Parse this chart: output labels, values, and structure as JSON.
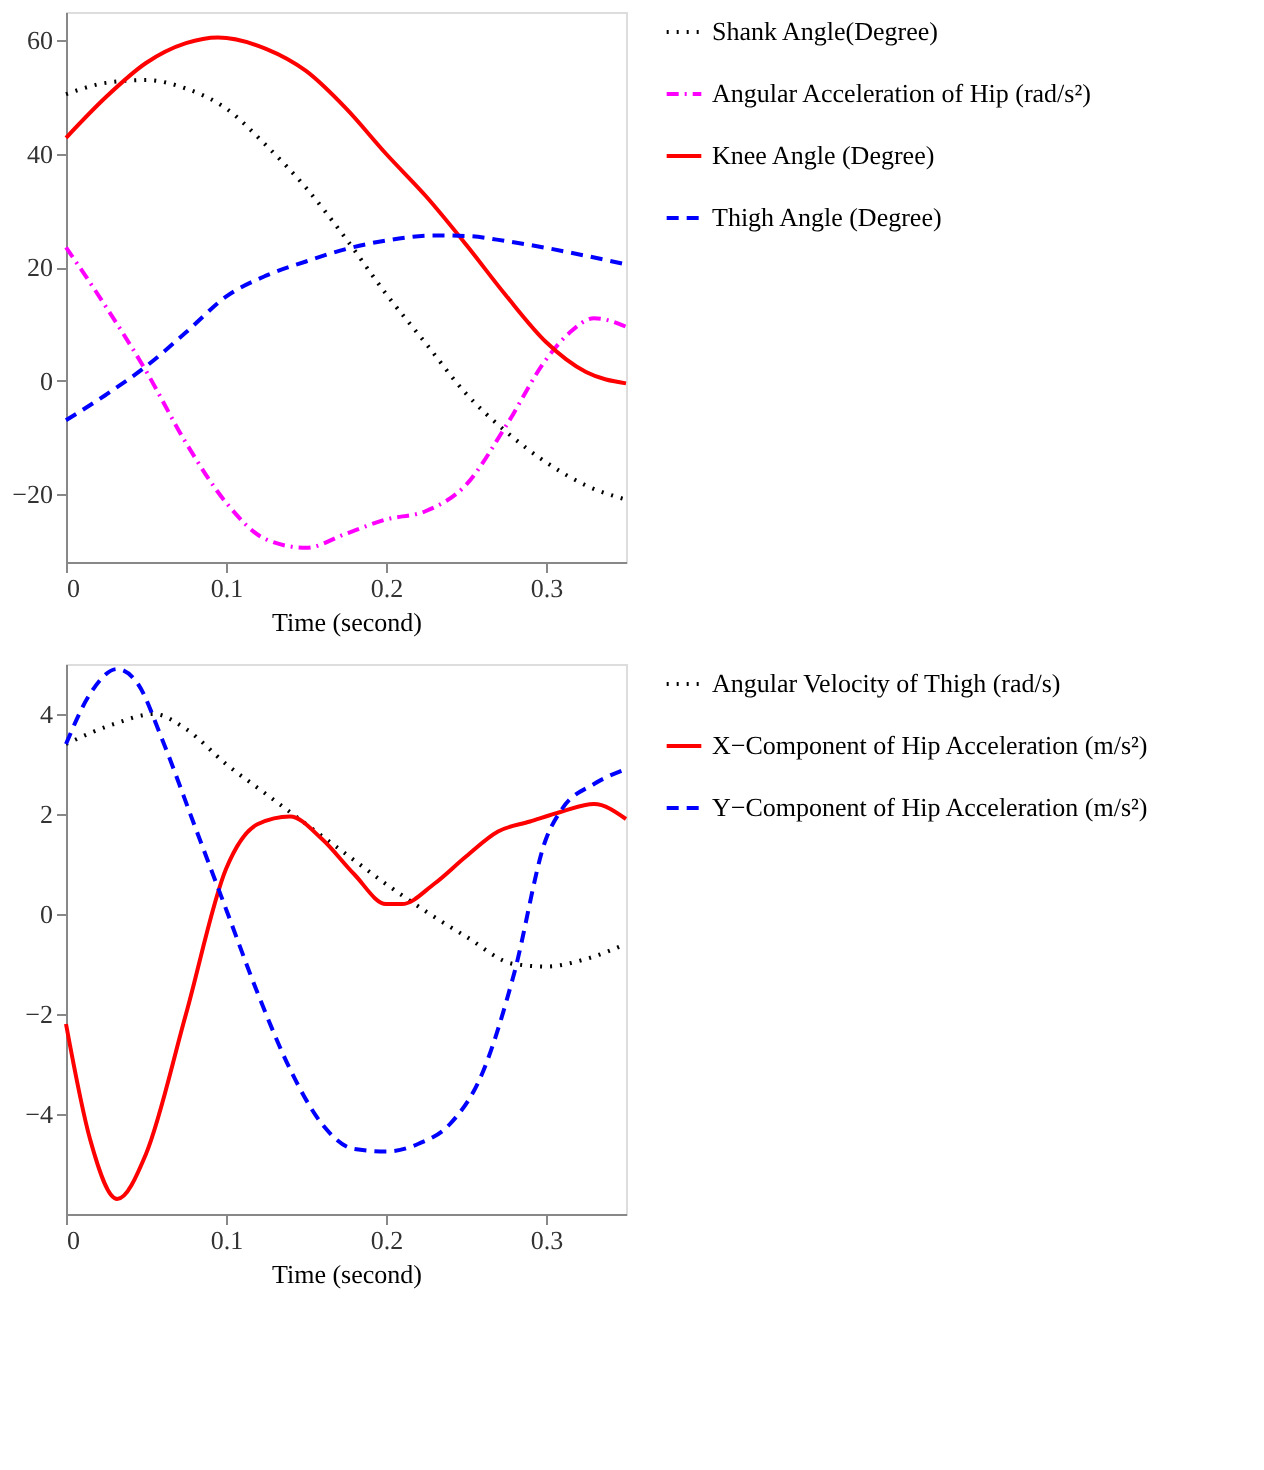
{
  "chart_data": [
    {
      "type": "line",
      "xlabel": "Time (second)",
      "xlim": [
        0,
        0.35
      ],
      "xticks": [
        0,
        0.1,
        0.2,
        0.3
      ],
      "ylim": [
        -32,
        65
      ],
      "yticks": [
        -20,
        0,
        20,
        40,
        60
      ],
      "grid": false,
      "legend": "right",
      "marker": "none",
      "series": [
        {
          "name": "Shank Angle(Degree)",
          "color": "#000000",
          "line_style": "dotted",
          "x": [
            0,
            0.025,
            0.05,
            0.075,
            0.1,
            0.125,
            0.15,
            0.175,
            0.2,
            0.225,
            0.25,
            0.275,
            0.3,
            0.325,
            0.35
          ],
          "values": [
            50.5,
            52.5,
            53,
            51.5,
            48,
            41.5,
            34,
            25,
            15.3,
            6.5,
            -2.3,
            -9,
            -14.4,
            -18.5,
            -21
          ]
        },
        {
          "name": "Angular Acceleration of Hip (rad/s²)",
          "color": "#ff00ff",
          "line_style": "dashdot",
          "x": [
            0,
            0.025,
            0.05,
            0.075,
            0.1,
            0.125,
            0.15,
            0.175,
            0.2,
            0.225,
            0.25,
            0.275,
            0.3,
            0.315,
            0.33,
            0.35
          ],
          "values": [
            23.5,
            13,
            1.7,
            -11,
            -21.5,
            -28,
            -29.5,
            -27,
            -24.5,
            -23,
            -18.4,
            -8,
            3.7,
            8.5,
            11,
            9.5
          ]
        },
        {
          "name": "Knee Angle (Degree)",
          "color": "#ff0000",
          "line_style": "solid",
          "x": [
            0,
            0.025,
            0.05,
            0.075,
            0.095,
            0.125,
            0.15,
            0.175,
            0.2,
            0.225,
            0.25,
            0.275,
            0.3,
            0.325,
            0.35
          ],
          "values": [
            42.8,
            50,
            56,
            59.5,
            60.5,
            58.5,
            54.6,
            48,
            40,
            32.5,
            24,
            15,
            6.8,
            1.5,
            -0.5
          ]
        },
        {
          "name": "Thigh Angle (Degree)",
          "color": "#0000ff",
          "line_style": "dashed",
          "x": [
            0,
            0.025,
            0.05,
            0.075,
            0.1,
            0.125,
            0.15,
            0.175,
            0.2,
            0.23,
            0.25,
            0.275,
            0.3,
            0.325,
            0.35
          ],
          "values": [
            -7,
            -2.5,
            2.5,
            8.5,
            14.8,
            18.5,
            21,
            23.2,
            24.7,
            25.6,
            25.5,
            24.6,
            23.4,
            22,
            20.5
          ]
        }
      ]
    },
    {
      "type": "line",
      "xlabel": "Time (second)",
      "xlim": [
        0,
        0.35
      ],
      "xticks": [
        0,
        0.1,
        0.2,
        0.3
      ],
      "ylim": [
        -6,
        5
      ],
      "yticks": [
        -4,
        -2,
        0,
        2,
        4
      ],
      "grid": false,
      "legend": "right",
      "marker": "none",
      "series": [
        {
          "name": "Angular Velocity of Thigh (rad/s)",
          "color": "#000000",
          "line_style": "dotted",
          "x": [
            0,
            0.03,
            0.055,
            0.075,
            0.1,
            0.125,
            0.15,
            0.175,
            0.2,
            0.225,
            0.25,
            0.28,
            0.3,
            0.325,
            0.35
          ],
          "values": [
            3.4,
            3.8,
            4.0,
            3.7,
            3.0,
            2.4,
            1.8,
            1.2,
            0.6,
            0.05,
            -0.45,
            -1.0,
            -1.05,
            -0.9,
            -0.6
          ]
        },
        {
          "name": "X−Component of Hip Acceleration (m/s²)",
          "color": "#ff0000",
          "line_style": "solid",
          "x": [
            0,
            0.015,
            0.032,
            0.05,
            0.075,
            0.1,
            0.12,
            0.14,
            0.16,
            0.18,
            0.2,
            0.21,
            0.23,
            0.25,
            0.27,
            0.29,
            0.31,
            0.33,
            0.35
          ],
          "values": [
            -2.2,
            -4.5,
            -5.7,
            -4.8,
            -2.0,
            0.9,
            1.8,
            1.95,
            1.5,
            0.8,
            0.2,
            0.2,
            0.6,
            1.15,
            1.65,
            1.85,
            2.05,
            2.2,
            1.9
          ]
        },
        {
          "name": "Y−Component of Hip Acceleration (m/s²)",
          "color": "#0000ff",
          "line_style": "dashed",
          "x": [
            0,
            0.015,
            0.032,
            0.045,
            0.06,
            0.08,
            0.1,
            0.12,
            0.14,
            0.16,
            0.18,
            0.2,
            0.22,
            0.24,
            0.26,
            0.28,
            0.3,
            0.31,
            0.33,
            0.35
          ],
          "values": [
            3.4,
            4.4,
            4.9,
            4.6,
            3.5,
            1.8,
            0.1,
            -1.6,
            -3.1,
            -4.2,
            -4.7,
            -4.75,
            -4.6,
            -4.2,
            -3.2,
            -1.2,
            1.5,
            2.1,
            2.6,
            2.9
          ]
        }
      ]
    }
  ]
}
